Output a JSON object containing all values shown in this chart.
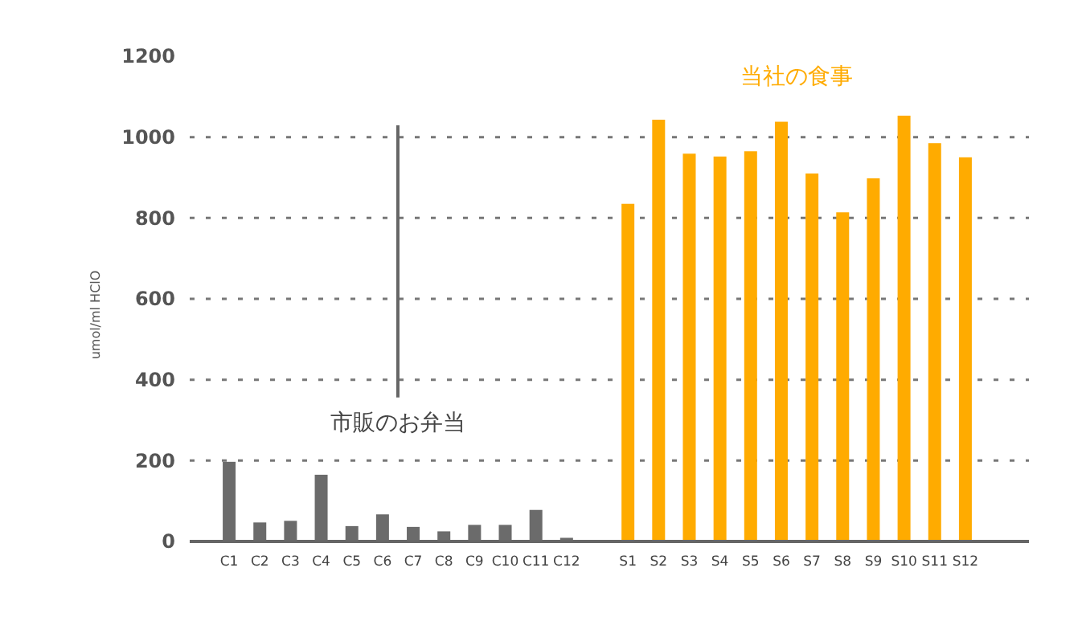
{
  "chart_data": {
    "type": "bar",
    "ylabel": "umol/ml HClO",
    "categories": [
      "C1",
      "C2",
      "C3",
      "C4",
      "C5",
      "C6",
      "C7",
      "C8",
      "C9",
      "C10",
      "C11",
      "C12",
      null,
      "S1",
      "S2",
      "S3",
      "S4",
      "S5",
      "S6",
      "S7",
      "S8",
      "S9",
      "S10",
      "S11",
      "S12"
    ],
    "series": [
      {
        "name": "市販のお弁当",
        "color": "#6b6b6b",
        "values": [
          197,
          47,
          51,
          165,
          38,
          67,
          36,
          25,
          41,
          41,
          78,
          9,
          null,
          null,
          null,
          null,
          null,
          null,
          null,
          null,
          null,
          null,
          null,
          null,
          null
        ]
      },
      {
        "name": "当社の食事",
        "color": "#ffab00",
        "values": [
          null,
          null,
          null,
          null,
          null,
          null,
          null,
          null,
          null,
          null,
          null,
          null,
          null,
          835,
          1043,
          959,
          952,
          965,
          1038,
          910,
          814,
          898,
          1053,
          985,
          950
        ]
      }
    ],
    "ylim": [
      0,
      1200
    ],
    "yticks": [
      0,
      200,
      400,
      600,
      800,
      1000,
      1200
    ],
    "grid": "y"
  }
}
